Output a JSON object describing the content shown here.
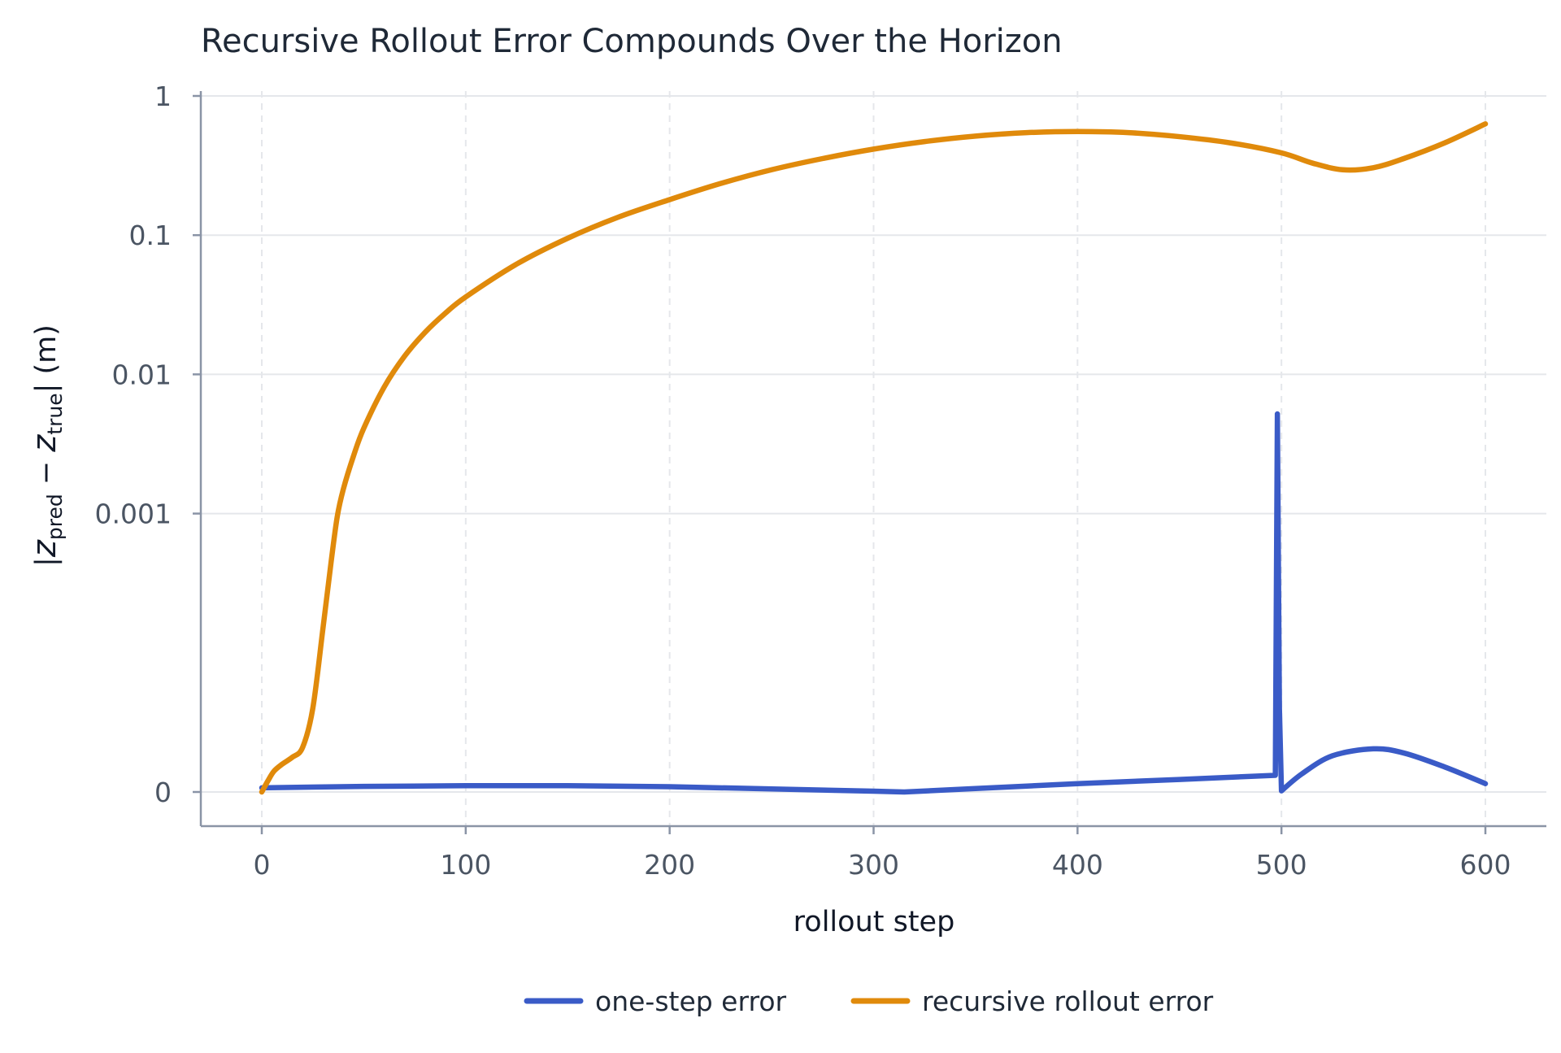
{
  "chart_data": {
    "type": "line",
    "title": "Recursive Rollout Error Compounds Over the Horizon",
    "xlabel": "rollout step",
    "ylabel": "|z_pred − z_true| (m)",
    "ylabel_parts": {
      "open": "|",
      "z1": "z",
      "sub1": "pred",
      "minus": " − ",
      "z2": "z",
      "sub2": "true",
      "close": "| (m)"
    },
    "x_ticks": [
      0,
      100,
      200,
      300,
      400,
      500,
      600
    ],
    "y_scale": "symlog",
    "y_linthresh": 0.0001,
    "y_ticks": [
      0,
      0.001,
      0.01,
      0.1,
      1
    ],
    "y_tick_labels": [
      "0",
      "0.001",
      "0.01",
      "0.1",
      "1"
    ],
    "xlim": [
      -30,
      625
    ],
    "ylim": [
      -2e-05,
      1.05
    ],
    "grid": true,
    "legend_position": "bottom-center",
    "series": [
      {
        "name": "one-step error",
        "color": "#3a5bc7",
        "x": [
          0,
          50,
          100,
          150,
          200,
          250,
          300,
          315,
          350,
          400,
          450,
          497,
          498,
          499,
          500,
          510,
          525,
          545,
          560,
          580,
          600
        ],
        "y": [
          3e-06,
          4e-06,
          4.5e-06,
          4.5e-06,
          3.8e-06,
          2.2e-06,
          6e-07,
          0.0,
          2.5e-06,
          6e-06,
          9e-06,
          1.2e-05,
          0.0052,
          6e-05,
          8e-07,
          1.3e-05,
          2.6e-05,
          3.1e-05,
          2.8e-05,
          1.8e-05,
          6e-06
        ]
      },
      {
        "name": "recursive rollout error",
        "color": "#e08a0b",
        "x": [
          0,
          3,
          6,
          10,
          15,
          20,
          25,
          30,
          34,
          37,
          40,
          45,
          50,
          60,
          70,
          80,
          90,
          100,
          125,
          150,
          175,
          200,
          225,
          250,
          275,
          300,
          325,
          350,
          375,
          400,
          425,
          450,
          475,
          500,
          515,
          530,
          545,
          560,
          580,
          600
        ],
        "y": [
          0.0,
          8e-06,
          1.5e-05,
          2e-05,
          2.5e-05,
          3.2e-05,
          6e-05,
          0.00015,
          0.00045,
          0.00095,
          0.0015,
          0.0026,
          0.0041,
          0.0081,
          0.0135,
          0.02,
          0.0275,
          0.036,
          0.062,
          0.095,
          0.135,
          0.18,
          0.235,
          0.295,
          0.355,
          0.415,
          0.47,
          0.515,
          0.545,
          0.555,
          0.545,
          0.51,
          0.46,
          0.39,
          0.33,
          0.295,
          0.305,
          0.355,
          0.46,
          0.63
        ]
      }
    ]
  }
}
